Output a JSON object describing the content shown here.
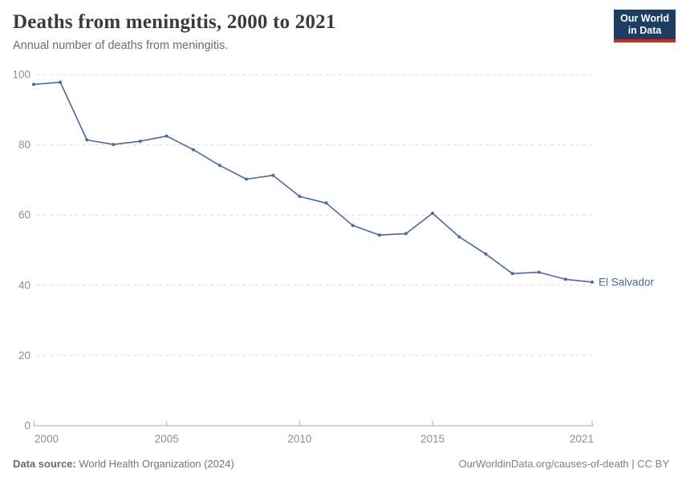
{
  "header": {
    "title": "Deaths from meningitis, 2000 to 2021",
    "subtitle": "Annual number of deaths from meningitis.",
    "logo": {
      "line1": "Our World",
      "line2": "in Data"
    }
  },
  "chart_data": {
    "type": "line",
    "title": "Deaths from meningitis, 2000 to 2021",
    "xlabel": "",
    "ylabel": "",
    "x": [
      2000,
      2001,
      2002,
      2003,
      2004,
      2005,
      2006,
      2007,
      2008,
      2009,
      2010,
      2011,
      2012,
      2013,
      2014,
      2015,
      2016,
      2017,
      2018,
      2019,
      2020,
      2021
    ],
    "series": [
      {
        "name": "El Salvador",
        "color": "#4c6a9c",
        "values": [
          97.2,
          97.8,
          81.4,
          80.1,
          81.0,
          82.5,
          78.6,
          74.1,
          70.2,
          71.3,
          65.3,
          63.4,
          57.0,
          54.3,
          54.7,
          60.5,
          53.8,
          48.9,
          43.3,
          43.7,
          41.7,
          40.9
        ]
      }
    ],
    "xlim": [
      2000,
      2021
    ],
    "ylim": [
      0,
      100
    ],
    "yticks": [
      0,
      20,
      40,
      60,
      80,
      100
    ],
    "xticks": [
      2000,
      2005,
      2010,
      2015,
      2021
    ],
    "grid": "horizontal-dashed",
    "legend_position": "end-of-line-label",
    "end_label": "El Salvador"
  },
  "footer": {
    "source_label": "Data source:",
    "source_value": " World Health Organization (2024)",
    "rights": "OurWorldinData.org/causes-of-death | CC BY"
  },
  "colors": {
    "series": "#4c6a9c",
    "grid": "#dddddd",
    "axis": "#a9a9a9",
    "tick_text": "#8f8f8f",
    "title_text": "#3b3b3b",
    "subtitle_text": "#6d6d6d",
    "logo_bg": "#1d3d63",
    "logo_bar": "#d12a21"
  }
}
